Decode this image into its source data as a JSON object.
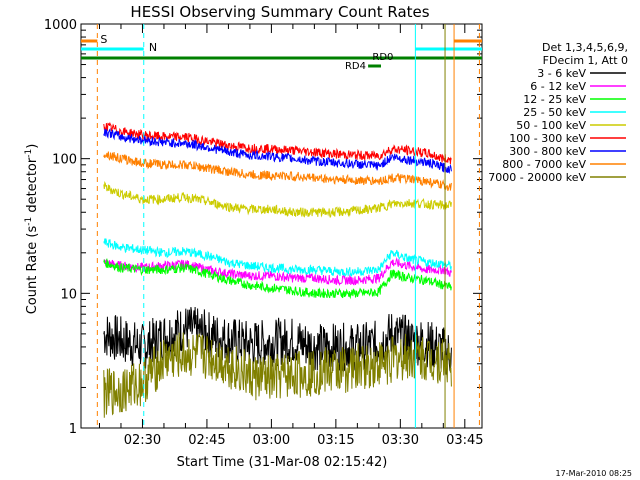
{
  "chart_data": {
    "type": "line",
    "title": "HESSI Observing Summary Count Rates",
    "xlabel": "Start Time (31-Mar-08 02:15:42)",
    "ylabel_main": "Count Rate (s",
    "ylabel_sup1": "-1",
    "ylabel_mid": " detector",
    "ylabel_sup2": "-1",
    "ylabel_end": ")",
    "ylog": true,
    "ylim": [
      1,
      1000
    ],
    "xlim_min": [
      15.7,
      109
    ],
    "x_ticks": [
      {
        "min": 30,
        "label": "02:30"
      },
      {
        "min": 45,
        "label": "02:45"
      },
      {
        "min": 60,
        "label": "03:00"
      },
      {
        "min": 75,
        "label": "03:15"
      },
      {
        "min": 90,
        "label": "03:30"
      },
      {
        "min": 105,
        "label": "03:45"
      }
    ],
    "y_ticks": [
      {
        "val": 1,
        "label": "1"
      },
      {
        "val": 10,
        "label": "10"
      },
      {
        "val": 100,
        "label": "100"
      },
      {
        "val": 1000,
        "label": "1000"
      }
    ],
    "legend_header": [
      "Det 1,3,4,5,6,9,",
      "FDecim 1, Att 0"
    ],
    "series": [
      {
        "name": "3 - 6 keV",
        "color": "#000000",
        "min": [
          21,
          25,
          30,
          35,
          40,
          45,
          50,
          55,
          60,
          65,
          70,
          75,
          80,
          85,
          88,
          92,
          96,
          100,
          102
        ],
        "values": [
          5,
          4.5,
          4,
          4.8,
          5.5,
          5,
          4.5,
          4.2,
          4.3,
          4.5,
          4,
          4,
          4,
          4.2,
          5,
          4.5,
          4.3,
          3.8,
          3.5
        ]
      },
      {
        "name": "6 - 12 keV",
        "color": "#ff00ff",
        "min": [
          21,
          25,
          30,
          35,
          40,
          45,
          50,
          55,
          60,
          65,
          70,
          75,
          80,
          85,
          88,
          92,
          96,
          100,
          102
        ],
        "values": [
          17,
          16,
          15.5,
          16,
          16.5,
          15,
          14,
          13.5,
          13.5,
          13,
          13,
          12.5,
          12.5,
          13,
          17,
          16,
          15,
          15,
          14
        ]
      },
      {
        "name": "12 - 25 keV",
        "color": "#00ff00",
        "min": [
          21,
          25,
          30,
          35,
          40,
          45,
          50,
          55,
          60,
          65,
          70,
          75,
          80,
          85,
          88,
          92,
          96,
          100,
          102
        ],
        "values": [
          17,
          15.5,
          15,
          15,
          15.5,
          14,
          12.5,
          11.5,
          11,
          10.5,
          10,
          10,
          10,
          10.2,
          14,
          13,
          12.5,
          11.5,
          11
        ]
      },
      {
        "name": "25 - 50 keV",
        "color": "#00ffff",
        "min": [
          21,
          25,
          30,
          35,
          40,
          45,
          50,
          55,
          60,
          65,
          70,
          75,
          80,
          85,
          88,
          92,
          96,
          100,
          102
        ],
        "values": [
          24,
          22,
          21,
          20,
          20.5,
          19,
          17,
          16,
          15.5,
          15,
          15,
          14.5,
          14.5,
          15,
          20,
          18,
          17,
          16.5,
          16
        ]
      },
      {
        "name": "50 - 100 keV",
        "color": "#cccc00",
        "min": [
          21,
          25,
          30,
          35,
          40,
          45,
          50,
          55,
          60,
          65,
          70,
          75,
          80,
          85,
          88,
          92,
          96,
          100,
          102
        ],
        "values": [
          62,
          55,
          50,
          50,
          52,
          48,
          44,
          42,
          42,
          40,
          40,
          40,
          41,
          43,
          46,
          47,
          46,
          45,
          45
        ]
      },
      {
        "name": "100 - 300 keV",
        "color": "#ff0000",
        "min": [
          21,
          25,
          30,
          35,
          40,
          45,
          50,
          55,
          60,
          65,
          70,
          75,
          80,
          85,
          88,
          92,
          96,
          100,
          102
        ],
        "values": [
          175,
          160,
          150,
          145,
          145,
          135,
          125,
          120,
          118,
          115,
          112,
          108,
          106,
          105,
          118,
          115,
          110,
          100,
          98
        ]
      },
      {
        "name": "300 - 800 keV",
        "color": "#0000ff",
        "min": [
          21,
          25,
          30,
          35,
          40,
          45,
          50,
          55,
          60,
          65,
          70,
          75,
          80,
          85,
          88,
          92,
          96,
          100,
          102
        ],
        "values": [
          160,
          145,
          138,
          132,
          130,
          122,
          112,
          106,
          104,
          100,
          96,
          93,
          91,
          88,
          103,
          98,
          94,
          86,
          83
        ]
      },
      {
        "name": "800 - 7000 keV",
        "color": "#ff8000",
        "min": [
          21,
          25,
          30,
          35,
          40,
          45,
          50,
          55,
          60,
          65,
          70,
          75,
          80,
          85,
          88,
          92,
          96,
          100,
          102
        ],
        "values": [
          110,
          100,
          93,
          90,
          90,
          85,
          80,
          76,
          75,
          74,
          72,
          70,
          69,
          68,
          72,
          70,
          68,
          63,
          62
        ]
      },
      {
        "name": "7000 - 20000 keV",
        "color": "#808000",
        "min": [
          21,
          25,
          30,
          35,
          40,
          45,
          50,
          55,
          60,
          65,
          70,
          75,
          80,
          85,
          88,
          92,
          96,
          100,
          102
        ],
        "values": [
          1.8,
          1.9,
          2.2,
          3.2,
          3.5,
          3.4,
          3,
          2.4,
          2.3,
          2.5,
          2.6,
          2.7,
          2.8,
          3,
          3.2,
          3.4,
          3.3,
          3.2,
          3
        ]
      }
    ],
    "flag_labels": [
      "S",
      "N",
      "RD0",
      "RD4"
    ],
    "footer_date": "17-Mar-2010 08:25"
  }
}
